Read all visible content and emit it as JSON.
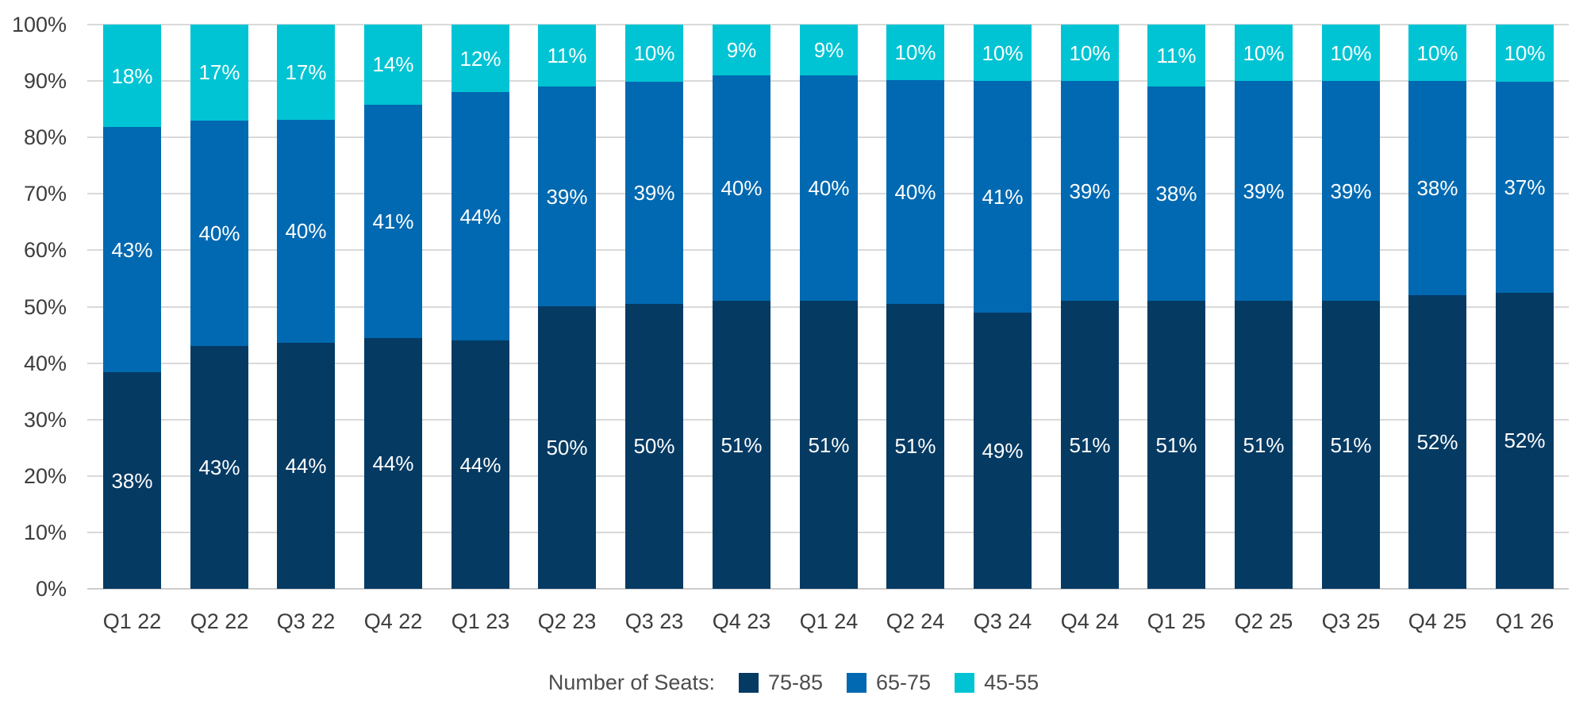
{
  "chart_data": {
    "type": "bar",
    "stacked": true,
    "title": "",
    "legend_title": "Number of Seats:",
    "legend_position": "bottom",
    "grid": true,
    "value_suffix": "%",
    "categories": [
      "Q1 22",
      "Q2 22",
      "Q3 22",
      "Q4 22",
      "Q1 23",
      "Q2 23",
      "Q3 23",
      "Q4 23",
      "Q1 24",
      "Q2 24",
      "Q3 24",
      "Q4 24",
      "Q1 25",
      "Q2 25",
      "Q3 25",
      "Q4 25",
      "Q1 26"
    ],
    "series": [
      {
        "name": "75-85",
        "color": "#053a63",
        "values": [
          38,
          43,
          44,
          44,
          44,
          50,
          50,
          51,
          51,
          51,
          49,
          51,
          51,
          51,
          51,
          52,
          52
        ]
      },
      {
        "name": "65-75",
        "color": "#0069b1",
        "values": [
          43,
          40,
          40,
          41,
          44,
          39,
          39,
          40,
          40,
          40,
          41,
          39,
          38,
          39,
          39,
          38,
          37
        ]
      },
      {
        "name": "45-55",
        "color": "#00c4d4",
        "values": [
          18,
          17,
          17,
          14,
          12,
          11,
          10,
          9,
          9,
          10,
          10,
          10,
          11,
          10,
          10,
          10,
          10
        ]
      }
    ],
    "y_axis": {
      "min": 0,
      "max": 100,
      "ticks": [
        "0%",
        "10%",
        "20%",
        "30%",
        "40%",
        "50%",
        "60%",
        "70%",
        "80%",
        "90%",
        "100%"
      ]
    }
  },
  "colors": {
    "background": "#ffffff",
    "gridline": "#d9d9d9",
    "axis_text": "#3d3d3d",
    "bar_label_text": "#ffffff",
    "legend_text": "#4d4d4d"
  }
}
